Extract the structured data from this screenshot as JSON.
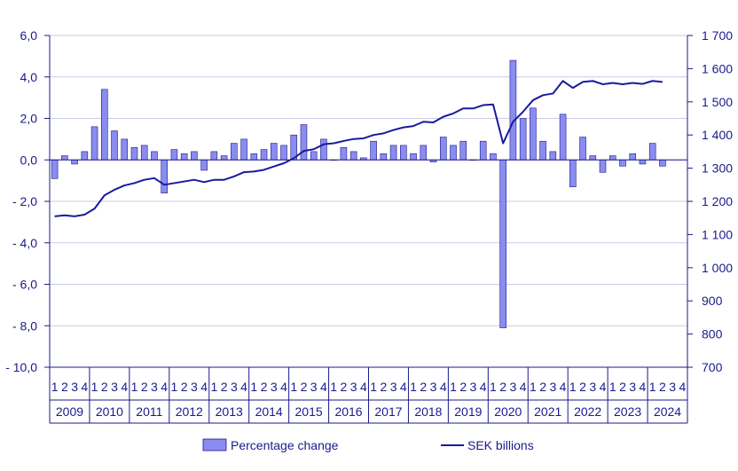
{
  "chart_data": {
    "type": "bar+line",
    "title": "",
    "colors": {
      "bar": "#8a8cf0",
      "bar_stroke": "#1a1a8c",
      "line": "#1a1a9c",
      "text": "#1a1a8c",
      "grid": "#c9c9e6"
    },
    "left_axis": {
      "ylim": [
        -10.0,
        6.0
      ],
      "ticks": [
        6.0,
        4.0,
        2.0,
        0.0,
        -2.0,
        -4.0,
        -6.0,
        -8.0,
        -10.0
      ],
      "tick_labels": [
        "6,0",
        "4,0",
        "2,0",
        "0,0",
        "- 2,0",
        "- 4,0",
        "- 6,0",
        "- 8,0",
        "- 10,0"
      ]
    },
    "right_axis": {
      "ylim": [
        700,
        1700
      ],
      "ticks": [
        1700,
        1600,
        1500,
        1400,
        1300,
        1200,
        1100,
        1000,
        900,
        800,
        700
      ],
      "tick_labels": [
        "1 700",
        "1 600",
        "1 500",
        "1 400",
        "1 300",
        "1 200",
        "1 100",
        "1 000",
        "900",
        "800",
        "700"
      ]
    },
    "quarter_labels": [
      "1",
      "2",
      "3",
      "4"
    ],
    "years": [
      "2009",
      "2010",
      "2011",
      "2012",
      "2013",
      "2014",
      "2015",
      "2016",
      "2017",
      "2018",
      "2019",
      "2020",
      "2021",
      "2022",
      "2023",
      "2024"
    ],
    "series": [
      {
        "name": "Percentage change",
        "type": "bar",
        "axis": "left",
        "values": [
          -0.9,
          0.2,
          -0.2,
          0.4,
          1.6,
          3.4,
          1.4,
          1.0,
          0.6,
          0.7,
          0.4,
          -1.6,
          0.5,
          0.3,
          0.4,
          -0.5,
          0.4,
          0.2,
          0.8,
          1.0,
          0.3,
          0.5,
          0.8,
          0.7,
          1.2,
          1.7,
          0.4,
          1.0,
          0.0,
          0.6,
          0.4,
          0.1,
          0.9,
          0.3,
          0.7,
          0.7,
          0.3,
          0.7,
          -0.1,
          1.1,
          0.7,
          0.9,
          0.0,
          0.9,
          0.3,
          -8.1,
          4.8,
          2.0,
          2.5,
          0.9,
          0.4,
          2.2,
          -1.3,
          1.1,
          0.2,
          -0.6,
          0.2,
          -0.3,
          0.3,
          -0.2,
          0.8,
          -0.3,
          null,
          null
        ]
      },
      {
        "name": "SEK billions",
        "type": "line",
        "axis": "right",
        "values": [
          1155,
          1158,
          1155,
          1160,
          1178,
          1218,
          1235,
          1248,
          1255,
          1265,
          1270,
          1250,
          1255,
          1260,
          1265,
          1258,
          1265,
          1265,
          1275,
          1288,
          1290,
          1295,
          1305,
          1315,
          1330,
          1352,
          1357,
          1372,
          1375,
          1382,
          1388,
          1390,
          1400,
          1405,
          1415,
          1423,
          1427,
          1440,
          1438,
          1455,
          1465,
          1480,
          1480,
          1490,
          1492,
          1375,
          1440,
          1470,
          1505,
          1520,
          1525,
          1563,
          1542,
          1560,
          1563,
          1553,
          1557,
          1553,
          1557,
          1554,
          1563,
          1560,
          null,
          null
        ]
      }
    ],
    "legend": {
      "placement": "bottom",
      "items": [
        "Percentage change",
        "SEK billions"
      ]
    }
  }
}
